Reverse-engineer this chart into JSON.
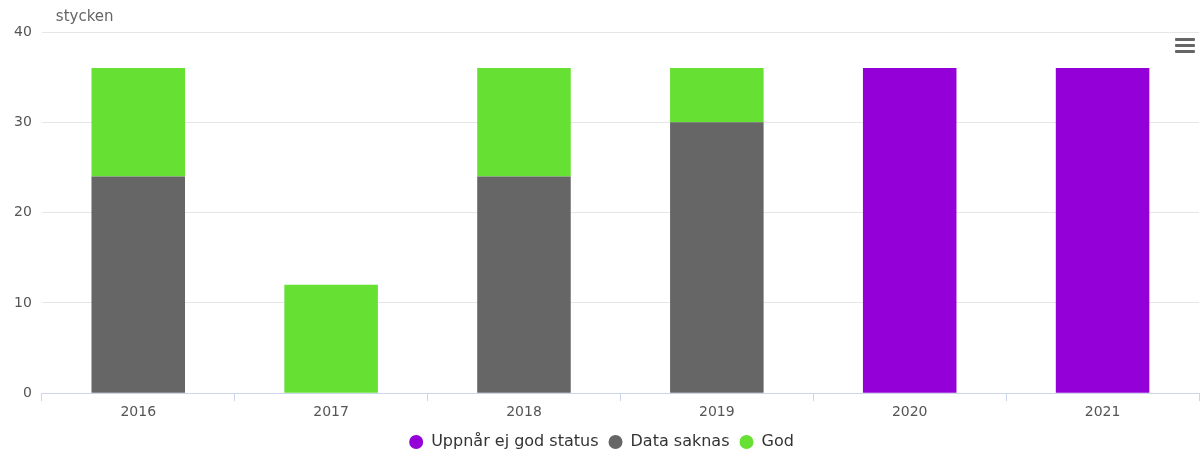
{
  "chart_data": {
    "type": "bar",
    "ylabel": "stycken",
    "stacked": true,
    "categories": [
      "2016",
      "2017",
      "2018",
      "2019",
      "2020",
      "2021"
    ],
    "series": [
      {
        "name": "Uppnår ej god status",
        "color": "#9400d8",
        "values": [
          0,
          0,
          0,
          0,
          36,
          36
        ]
      },
      {
        "name": "Data saknas",
        "color": "#666666",
        "values": [
          24,
          0,
          24,
          30,
          0,
          0
        ]
      },
      {
        "name": "God",
        "color": "#66e033",
        "values": [
          12,
          12,
          12,
          6,
          0,
          0
        ]
      }
    ],
    "ylim": [
      0,
      40
    ],
    "yticks": [
      0,
      10,
      20,
      30,
      40
    ],
    "grid": "y",
    "legend": "bottom",
    "marker": "circle"
  }
}
